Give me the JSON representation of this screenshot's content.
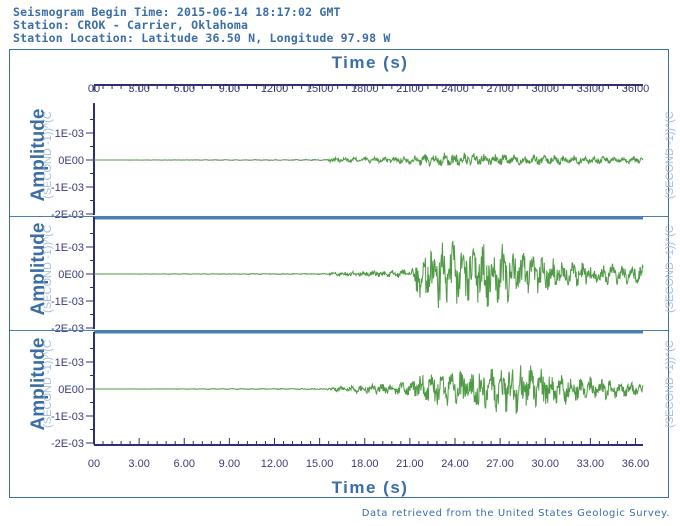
{
  "header": {
    "line1": "Seismogram Begin Time: 2015-06-14 18:17:02 GMT",
    "line2": "Station: CROK - Carrier, Oklahoma",
    "line3": "Station Location: Latitude 36.50 N, Longitude 97.98 W"
  },
  "footer": "Data retrieved from the United States Geologic Survey.",
  "colors": {
    "trace": "#4f9a45",
    "frame": "#3b6ea5",
    "axis": "#2f2f6f",
    "separator": "#4a7fb5"
  },
  "chart_data": {
    "type": "line",
    "xlabel": "Time (s)",
    "x_ticks": [
      "00",
      "3.00",
      "6.00",
      "9.00",
      "12.00",
      "15.00",
      "18.00",
      "21.00",
      "24.00",
      "27.00",
      "30.00",
      "33.00",
      "36.00"
    ],
    "xlim": [
      0,
      36.5
    ],
    "panels": [
      {
        "ylabel": "Amplitude",
        "unit": "(SECOND -1))^(C",
        "y_ticks": [
          "1E-03",
          "0E00",
          "-1E-03",
          "-2E-03"
        ],
        "ylim": [
          -0.002,
          0.002
        ],
        "envelope": [
          [
            0,
            0
          ],
          [
            15.5,
            2e-05
          ],
          [
            15.7,
            8e-05
          ],
          [
            21.0,
            0.00012
          ],
          [
            22.0,
            0.0002
          ],
          [
            24.0,
            0.00025
          ],
          [
            27.0,
            0.0002
          ],
          [
            30.0,
            0.00016
          ],
          [
            36.5,
            0.00012
          ]
        ]
      },
      {
        "ylabel": "Amplitude",
        "unit": "(SECOND -1))^(C",
        "y_ticks": [
          "1E-03",
          "0E00",
          "-1E-03",
          "-2E-03"
        ],
        "ylim": [
          -0.002,
          0.002
        ],
        "envelope": [
          [
            0,
            0
          ],
          [
            15.5,
            2e-05
          ],
          [
            15.8,
            6e-05
          ],
          [
            21.0,
            0.00015
          ],
          [
            21.6,
            0.0009
          ],
          [
            22.5,
            0.0011
          ],
          [
            26.0,
            0.0011
          ],
          [
            29.0,
            0.0007
          ],
          [
            32.0,
            0.0004
          ],
          [
            36.5,
            0.0003
          ]
        ]
      },
      {
        "ylabel": "Amplitude",
        "unit": "(SECOND -1))^(C",
        "y_ticks": [
          "1E-03",
          "0E00",
          "-1E-03",
          "-2E-03"
        ],
        "ylim": [
          -0.002,
          0.002
        ],
        "envelope": [
          [
            0,
            0
          ],
          [
            15.5,
            2e-05
          ],
          [
            15.8,
            8e-05
          ],
          [
            21.0,
            0.00025
          ],
          [
            21.6,
            0.0005
          ],
          [
            24.0,
            0.0006
          ],
          [
            28.5,
            0.0008
          ],
          [
            31.0,
            0.0005
          ],
          [
            33.0,
            0.0004
          ],
          [
            36.5,
            0.0002
          ]
        ]
      }
    ]
  }
}
